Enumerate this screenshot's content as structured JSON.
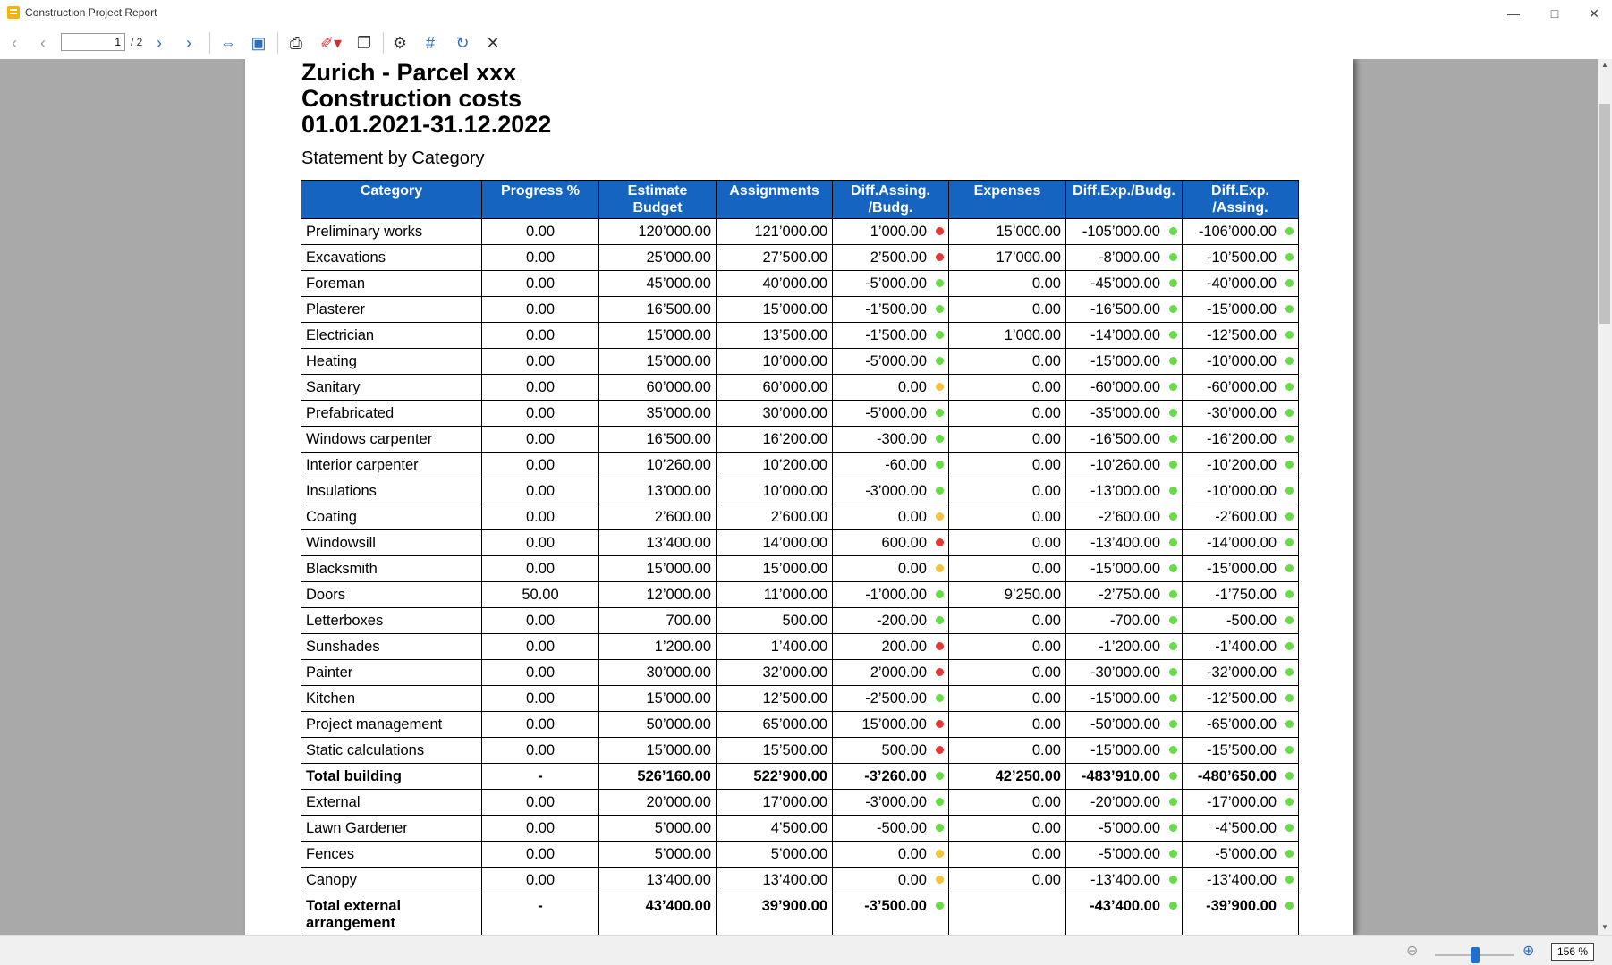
{
  "window": {
    "title": "Construction Project Report"
  },
  "toolbar": {
    "page_current": "1",
    "page_total": "/ 2"
  },
  "status": {
    "zoom": "156 %"
  },
  "report": {
    "line1": "Zurich - Parcel xxx",
    "line2": "Construction costs",
    "line3": "01.01.2021-31.12.2022",
    "subtitle": "Statement by Category",
    "headers": {
      "category": "Category",
      "progress": "Progress %",
      "estimate1": "Estimate",
      "estimate2": "Budget",
      "assignments": "Assignments",
      "diffab1": "Diff.Assing.",
      "diffab2": "/Budg.",
      "expenses": "Expenses",
      "diffeb": "Diff.Exp./Budg.",
      "diffea1": "Diff.Exp.",
      "diffea2": "/Assing."
    },
    "colors": {
      "red": "#e53935",
      "green": "#66dd44",
      "yellow": "#f6c23e",
      "header": "#1565c0"
    },
    "rows": [
      {
        "category": "Preliminary works",
        "progress": "0.00",
        "budget": "120’000.00",
        "assign": "121’000.00",
        "diffab": "1’000.00",
        "dab": "red",
        "expenses": "15’000.00",
        "diffeb": "-105’000.00",
        "deb": "green",
        "diffea": "-106’000.00",
        "dea": "green"
      },
      {
        "category": "Excavations",
        "progress": "0.00",
        "budget": "25’000.00",
        "assign": "27’500.00",
        "diffab": "2’500.00",
        "dab": "red",
        "expenses": "17’000.00",
        "diffeb": "-8’000.00",
        "deb": "green",
        "diffea": "-10’500.00",
        "dea": "green"
      },
      {
        "category": "Foreman",
        "progress": "0.00",
        "budget": "45’000.00",
        "assign": "40’000.00",
        "diffab": "-5’000.00",
        "dab": "green",
        "expenses": "0.00",
        "diffeb": "-45’000.00",
        "deb": "green",
        "diffea": "-40’000.00",
        "dea": "green"
      },
      {
        "category": "Plasterer",
        "progress": "0.00",
        "budget": "16’500.00",
        "assign": "15’000.00",
        "diffab": "-1’500.00",
        "dab": "green",
        "expenses": "0.00",
        "diffeb": "-16’500.00",
        "deb": "green",
        "diffea": "-15’000.00",
        "dea": "green"
      },
      {
        "category": "Electrician",
        "progress": "0.00",
        "budget": "15’000.00",
        "assign": "13’500.00",
        "diffab": "-1’500.00",
        "dab": "green",
        "expenses": "1’000.00",
        "diffeb": "-14’000.00",
        "deb": "green",
        "diffea": "-12’500.00",
        "dea": "green"
      },
      {
        "category": "Heating",
        "progress": "0.00",
        "budget": "15’000.00",
        "assign": "10’000.00",
        "diffab": "-5’000.00",
        "dab": "green",
        "expenses": "0.00",
        "diffeb": "-15’000.00",
        "deb": "green",
        "diffea": "-10’000.00",
        "dea": "green"
      },
      {
        "category": "Sanitary",
        "progress": "0.00",
        "budget": "60’000.00",
        "assign": "60’000.00",
        "diffab": "0.00",
        "dab": "yellow",
        "expenses": "0.00",
        "diffeb": "-60’000.00",
        "deb": "green",
        "diffea": "-60’000.00",
        "dea": "green"
      },
      {
        "category": "Prefabricated",
        "progress": "0.00",
        "budget": "35’000.00",
        "assign": "30’000.00",
        "diffab": "-5’000.00",
        "dab": "green",
        "expenses": "0.00",
        "diffeb": "-35’000.00",
        "deb": "green",
        "diffea": "-30’000.00",
        "dea": "green"
      },
      {
        "category": "Windows carpenter",
        "progress": "0.00",
        "budget": "16’500.00",
        "assign": "16’200.00",
        "diffab": "-300.00",
        "dab": "green",
        "expenses": "0.00",
        "diffeb": "-16’500.00",
        "deb": "green",
        "diffea": "-16’200.00",
        "dea": "green"
      },
      {
        "category": "Interior carpenter",
        "progress": "0.00",
        "budget": "10’260.00",
        "assign": "10’200.00",
        "diffab": "-60.00",
        "dab": "green",
        "expenses": "0.00",
        "diffeb": "-10’260.00",
        "deb": "green",
        "diffea": "-10’200.00",
        "dea": "green"
      },
      {
        "category": "Insulations",
        "progress": "0.00",
        "budget": "13’000.00",
        "assign": "10’000.00",
        "diffab": "-3’000.00",
        "dab": "green",
        "expenses": "0.00",
        "diffeb": "-13’000.00",
        "deb": "green",
        "diffea": "-10’000.00",
        "dea": "green"
      },
      {
        "category": "Coating",
        "progress": "0.00",
        "budget": "2’600.00",
        "assign": "2’600.00",
        "diffab": "0.00",
        "dab": "yellow",
        "expenses": "0.00",
        "diffeb": "-2’600.00",
        "deb": "green",
        "diffea": "-2’600.00",
        "dea": "green"
      },
      {
        "category": "Windowsill",
        "progress": "0.00",
        "budget": "13’400.00",
        "assign": "14’000.00",
        "diffab": "600.00",
        "dab": "red",
        "expenses": "0.00",
        "diffeb": "-13’400.00",
        "deb": "green",
        "diffea": "-14’000.00",
        "dea": "green"
      },
      {
        "category": "Blacksmith",
        "progress": "0.00",
        "budget": "15’000.00",
        "assign": "15’000.00",
        "diffab": "0.00",
        "dab": "yellow",
        "expenses": "0.00",
        "diffeb": "-15’000.00",
        "deb": "green",
        "diffea": "-15’000.00",
        "dea": "green"
      },
      {
        "category": "Doors",
        "progress": "50.00",
        "budget": "12’000.00",
        "assign": "11’000.00",
        "diffab": "-1’000.00",
        "dab": "green",
        "expenses": "9’250.00",
        "diffeb": "-2’750.00",
        "deb": "green",
        "diffea": "-1’750.00",
        "dea": "green"
      },
      {
        "category": "Letterboxes",
        "progress": "0.00",
        "budget": "700.00",
        "assign": "500.00",
        "diffab": "-200.00",
        "dab": "green",
        "expenses": "0.00",
        "diffeb": "-700.00",
        "deb": "green",
        "diffea": "-500.00",
        "dea": "green"
      },
      {
        "category": "Sunshades",
        "progress": "0.00",
        "budget": "1’200.00",
        "assign": "1’400.00",
        "diffab": "200.00",
        "dab": "red",
        "expenses": "0.00",
        "diffeb": "-1’200.00",
        "deb": "green",
        "diffea": "-1’400.00",
        "dea": "green"
      },
      {
        "category": "Painter",
        "progress": "0.00",
        "budget": "30’000.00",
        "assign": "32’000.00",
        "diffab": "2’000.00",
        "dab": "red",
        "expenses": "0.00",
        "diffeb": "-30’000.00",
        "deb": "green",
        "diffea": "-32’000.00",
        "dea": "green"
      },
      {
        "category": "Kitchen",
        "progress": "0.00",
        "budget": "15’000.00",
        "assign": "12’500.00",
        "diffab": "-2’500.00",
        "dab": "green",
        "expenses": "0.00",
        "diffeb": "-15’000.00",
        "deb": "green",
        "diffea": "-12’500.00",
        "dea": "green"
      },
      {
        "category": "Project management",
        "progress": "0.00",
        "budget": "50’000.00",
        "assign": "65’000.00",
        "diffab": "15’000.00",
        "dab": "red",
        "expenses": "0.00",
        "diffeb": "-50’000.00",
        "deb": "green",
        "diffea": "-65’000.00",
        "dea": "green"
      },
      {
        "category": "Static calculations",
        "progress": "0.00",
        "budget": "15’000.00",
        "assign": "15’500.00",
        "diffab": "500.00",
        "dab": "red",
        "expenses": "0.00",
        "diffeb": "-15’000.00",
        "deb": "green",
        "diffea": "-15’500.00",
        "dea": "green"
      },
      {
        "category": "Total building",
        "progress": "-",
        "budget": "526’160.00",
        "assign": "522’900.00",
        "diffab": "-3’260.00",
        "dab": "green",
        "expenses": "42’250.00",
        "diffeb": "-483’910.00",
        "deb": "green",
        "diffea": "-480’650.00",
        "dea": "green",
        "total": true
      },
      {
        "category": "External",
        "progress": "0.00",
        "budget": "20’000.00",
        "assign": "17’000.00",
        "diffab": "-3’000.00",
        "dab": "green",
        "expenses": "0.00",
        "diffeb": "-20’000.00",
        "deb": "green",
        "diffea": "-17’000.00",
        "dea": "green"
      },
      {
        "category": "Lawn Gardener",
        "progress": "0.00",
        "budget": "5’000.00",
        "assign": "4’500.00",
        "diffab": "-500.00",
        "dab": "green",
        "expenses": "0.00",
        "diffeb": "-5’000.00",
        "deb": "green",
        "diffea": "-4’500.00",
        "dea": "green"
      },
      {
        "category": "Fences",
        "progress": "0.00",
        "budget": "5’000.00",
        "assign": "5’000.00",
        "diffab": "0.00",
        "dab": "yellow",
        "expenses": "0.00",
        "diffeb": "-5’000.00",
        "deb": "green",
        "diffea": "-5’000.00",
        "dea": "green"
      },
      {
        "category": "Canopy",
        "progress": "0.00",
        "budget": "13’400.00",
        "assign": "13’400.00",
        "diffab": "0.00",
        "dab": "yellow",
        "expenses": "0.00",
        "diffeb": "-13’400.00",
        "deb": "green",
        "diffea": "-13’400.00",
        "dea": "green"
      },
      {
        "category": "Total external arrangement",
        "progress": "-",
        "budget": "43’400.00",
        "assign": "39’900.00",
        "diffab": "-3’500.00",
        "dab": "green",
        "expenses": "",
        "diffeb": "-43’400.00",
        "deb": "green",
        "diffea": "-39’900.00",
        "dea": "green",
        "total": true,
        "two": true
      }
    ]
  }
}
